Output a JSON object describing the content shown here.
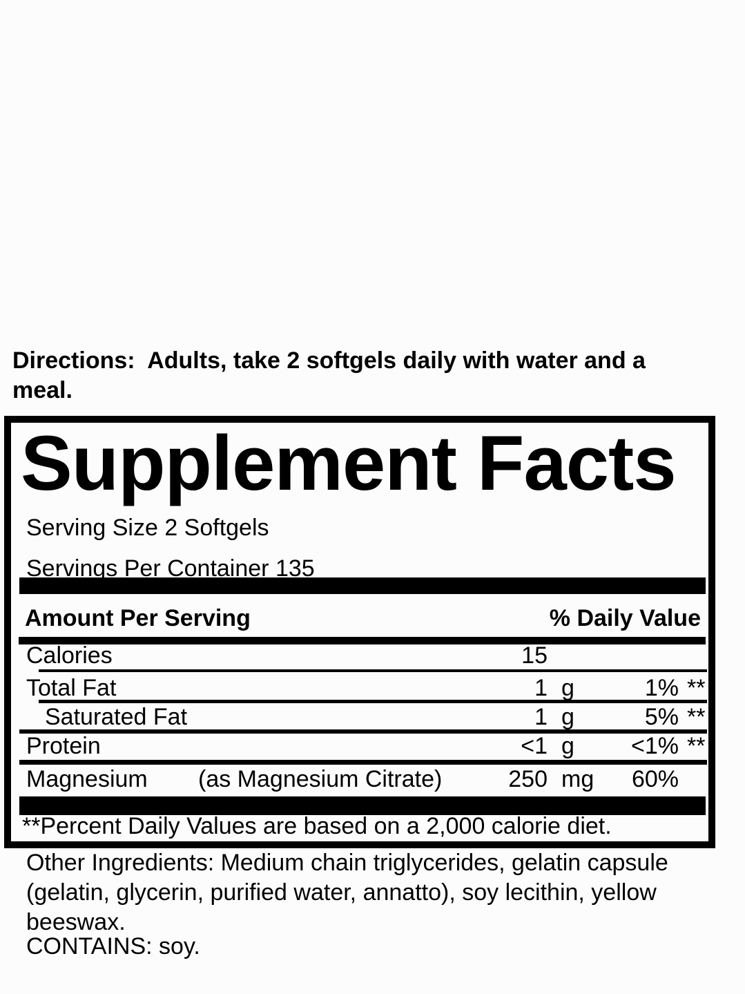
{
  "page": {
    "background": "#fcfcfc",
    "ink": "#000000"
  },
  "directions": "Directions:  Adults, take 2 softgels daily with water and a\nmeal.",
  "supplement_facts": {
    "title": "Supplement Facts",
    "serving_size": "Serving Size 2 Softgels",
    "servings_per_container": "Servings Per Container 135",
    "columns": {
      "amount_header": "Amount Per Serving",
      "daily_value_header": "% Daily Value"
    },
    "rows": [
      {
        "label": "Calories",
        "amount": "15",
        "unit": "",
        "daily_value": "",
        "footnote_marker": ""
      },
      {
        "label": "Total Fat",
        "amount": "1",
        "unit": "g",
        "daily_value": "1%",
        "footnote_marker": "**"
      },
      {
        "label": "Saturated Fat",
        "amount": "1",
        "unit": "g",
        "daily_value": "5%",
        "footnote_marker": "**"
      },
      {
        "label": "Protein",
        "amount": "<1",
        "unit": "g",
        "daily_value": "<1%",
        "footnote_marker": "**"
      },
      {
        "label": "Magnesium",
        "source": "(as Magnesium Citrate)",
        "amount": "250",
        "unit": "mg",
        "daily_value": "60%",
        "footnote_marker": ""
      }
    ],
    "footnote": "**Percent Daily Values are based on a 2,000 calorie diet."
  },
  "other_ingredients": "Other Ingredients: Medium chain triglycerides, gelatin capsule\n(gelatin, glycerin, purified water, annatto), soy lecithin, yellow\nbeeswax.",
  "contains": "CONTAINS: soy."
}
